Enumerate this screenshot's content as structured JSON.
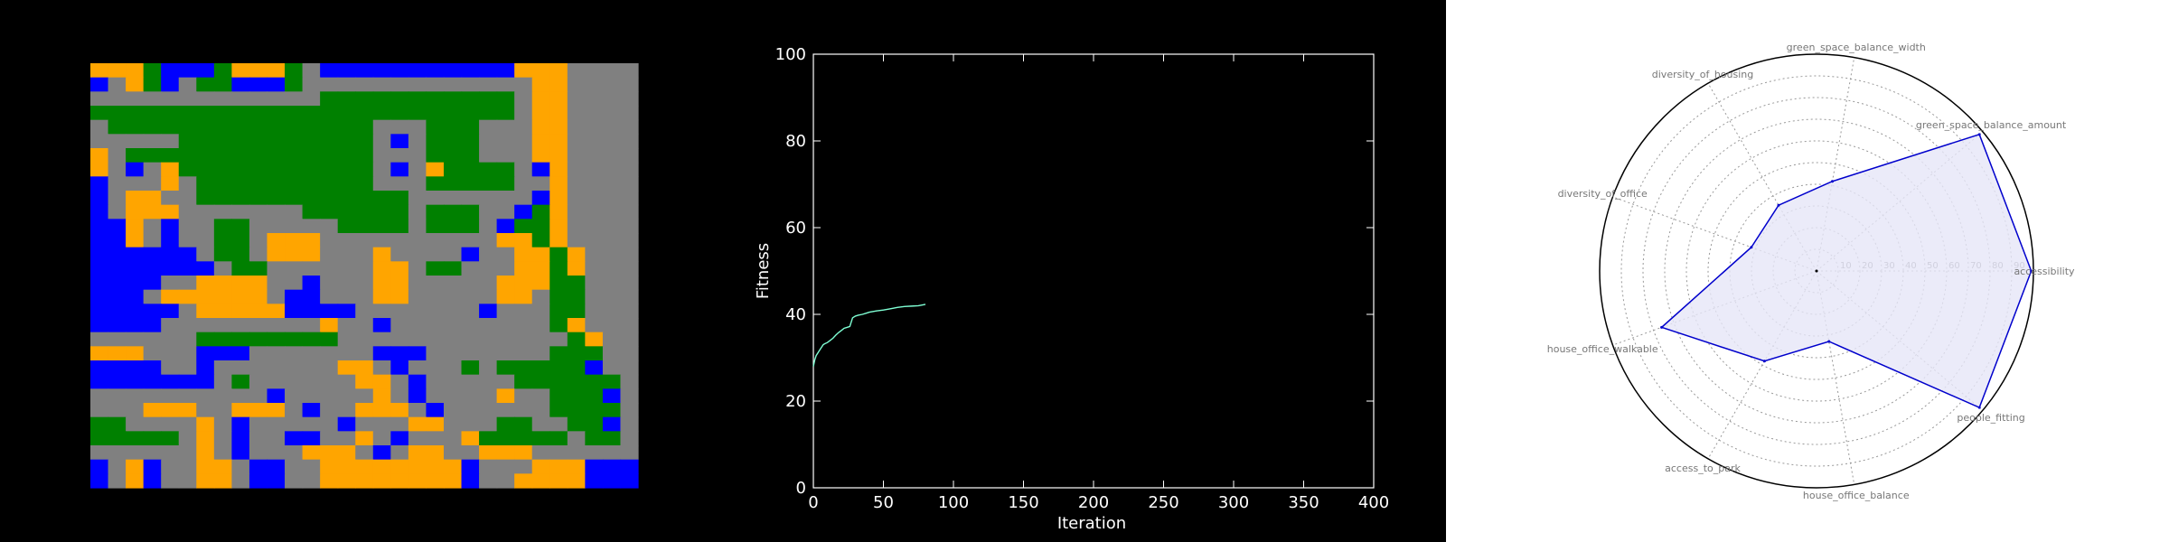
{
  "colors": {
    "road": "#808080",
    "park": "#008000",
    "office": "#0000ff",
    "house": "#ffa500",
    "line": "#7fffd4",
    "radar_line": "#0000cc",
    "radar_fill": "#e6e6f8",
    "radar_grid": "#999999"
  },
  "chart_data": [
    {
      "type": "heatmap",
      "title": "",
      "legend_colors": {
        "R": "road",
        "G": "park",
        "B": "office",
        "O": "house"
      },
      "rows": [
        "OOOGBBBGOOOGRBBBBBBBBBBBOOO",
        "BROGBRGGBBBGRRRRRRRRRRRRROO",
        "RRRRRRRRRRRRRGGGGGGGGGGGROO",
        "GGGGGGGGGGGGGGGGGGGGGGGGROO",
        "RGGGGGGGGGGGGGGGRRRGGGRRROO",
        "RRRRRGGGGGGGGGGGRBRGGGRRROO",
        "ORGGGGGGGGGGGGGGRRRGGGRRROO",
        "ORBROGGGGGGGGGGGRBROGGGGRBO",
        "BRRRORGGGGGGGGGGRRRGGGGGRRO",
        "BROORRGGGGGGGGGGGGRRRRRRRBO",
        "BROOORRRRRRRGGGGGGRGGGRRBGO",
        "BBORBRRGGRRRRRGGGGRGGGRBGGO",
        "BBORBRRGGROOORRRRRRRRRROOGO",
        "BBBBBBRGGROOORRRORRRRBRROOGO",
        "BBBBBBBRGGRRRRRROORGGRRROOGO",
        "BBBBRROOOORRBRRROORRRRROOOGG",
        "BBBROOOOOORBBRRROORRRRROORGG",
        "BBBBBROOOOOBBBBRRRRRRRBRRRGG",
        "BBBBRRRRRRRRRORRBRRRRRRRRRGO",
        "RRRRRRGGGGGGGGRRRRRRRRRRRRRGO",
        "OOORRRBBBRRRRRRRBBBRRRRRRRGGG",
        "BBBBRRBRRRRRRROORBRRRGRGGGGGB",
        "BBBBBBBRGRRRRRROORBRRRRRGGGGGG",
        "RRRRRRRRRRBRRRRRORBRRRRORRGGGB",
        "RRROOORROOORBRROOORBRRRRRRGGGG",
        "GGRRRRORBRRRRRBRRROORRRGGRRGGB",
        "GGGGGRORBRRBBRRORBRRROGGGGGRGG",
        "RRRRRRORBRRROOORBROORROOORRRRR",
        "BROBRROORBBRROOOOOOOOBRRROOOBBB",
        "BROBRROORBBRROOOOOOOOBRROOOOBBB"
      ]
    },
    {
      "type": "line",
      "title": "",
      "xlabel": "Iteration",
      "ylabel": "Fitness",
      "xlim": [
        0,
        400
      ],
      "ylim": [
        0,
        100
      ],
      "xticks": [
        0,
        50,
        100,
        150,
        200,
        250,
        300,
        350,
        400
      ],
      "yticks": [
        0,
        20,
        40,
        60,
        80,
        100
      ],
      "x": [
        0,
        1,
        2,
        3,
        4,
        5,
        6,
        7,
        8,
        10,
        12,
        14,
        16,
        18,
        20,
        22,
        24,
        26,
        28,
        30,
        32,
        35,
        38,
        40,
        45,
        50,
        55,
        60,
        65,
        70,
        75,
        80
      ],
      "y": [
        28,
        29.5,
        30.5,
        31,
        31.5,
        32,
        32.5,
        33,
        33.2,
        33.5,
        34,
        34.5,
        35.2,
        35.8,
        36.3,
        36.8,
        37,
        37.2,
        39.2,
        39.6,
        39.8,
        40,
        40.3,
        40.5,
        40.8,
        41,
        41.3,
        41.6,
        41.8,
        41.9,
        42,
        42.3
      ]
    },
    {
      "type": "radar",
      "title": "",
      "rlim": [
        0,
        100
      ],
      "rticks": [
        10,
        20,
        30,
        40,
        50,
        60,
        70,
        80,
        90
      ],
      "categories": [
        "accessibility",
        "green_space_balance_amount",
        "green_space_balance_width",
        "diversity_of_housing",
        "diversity_of_office",
        "house_office_walkable",
        "access_to_park",
        "house_office_balance",
        "people_fitting"
      ],
      "values": [
        99,
        98,
        42,
        35,
        32,
        76,
        48,
        33,
        98
      ]
    }
  ]
}
